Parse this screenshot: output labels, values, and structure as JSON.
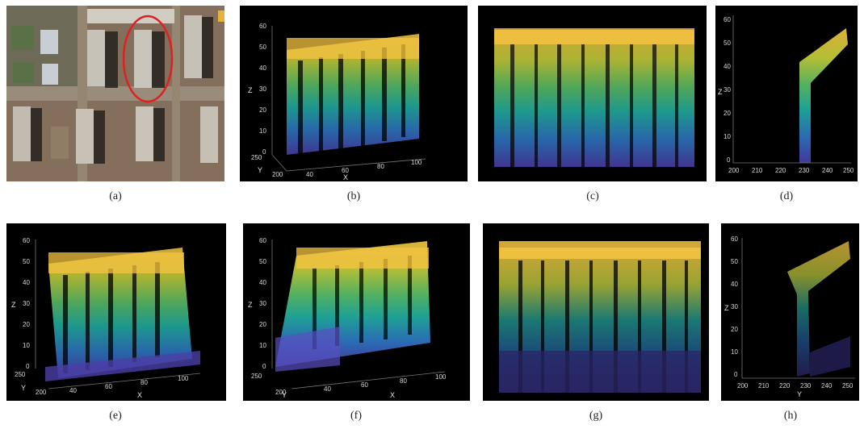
{
  "figure": {
    "captions": [
      "(a)",
      "(b)",
      "(c)",
      "(d)",
      "(e)",
      "(f)",
      "(g)",
      "(h)"
    ]
  },
  "panels": {
    "b": {
      "z_ticks": [
        "60",
        "50",
        "40",
        "30",
        "20",
        "10",
        "0"
      ],
      "x_ticks": [
        "40",
        "60",
        "80",
        "100"
      ],
      "y_ticks": [
        "250",
        "200"
      ],
      "xlabel": "X",
      "ylabel": "Y",
      "zlabel": "Z"
    },
    "d": {
      "z_ticks": [
        "60",
        "50",
        "40",
        "30",
        "20",
        "10",
        "0"
      ],
      "x_ticks": [
        "200",
        "210",
        "220",
        "230",
        "240",
        "250"
      ],
      "zlabel": "Z"
    },
    "e": {
      "z_ticks": [
        "60",
        "50",
        "40",
        "30",
        "20",
        "10",
        "0"
      ],
      "x_ticks": [
        "40",
        "60",
        "80",
        "100"
      ],
      "y_ticks": [
        "250",
        "200"
      ],
      "xlabel": "X",
      "ylabel": "Y",
      "zlabel": "Z"
    },
    "f": {
      "z_ticks": [
        "60",
        "50",
        "40",
        "30",
        "20",
        "10",
        "0"
      ],
      "x_ticks": [
        "40",
        "60",
        "80",
        "100"
      ],
      "y_ticks": [
        "250",
        "200"
      ],
      "xlabel": "X",
      "ylabel": "Y",
      "zlabel": "Z"
    },
    "h": {
      "z_ticks": [
        "60",
        "50",
        "40",
        "30",
        "20",
        "10",
        "0"
      ],
      "x_ticks": [
        "200",
        "210",
        "220",
        "230",
        "240",
        "250"
      ],
      "xlabel": "Y",
      "zlabel": "Z"
    }
  },
  "colors": {
    "top": "#f6c441",
    "upper": "#9ccf3c",
    "middle": "#22b3a6",
    "lower": "#2f78c8",
    "bottom": "#4b3fa8",
    "annotation": "#e02020"
  }
}
